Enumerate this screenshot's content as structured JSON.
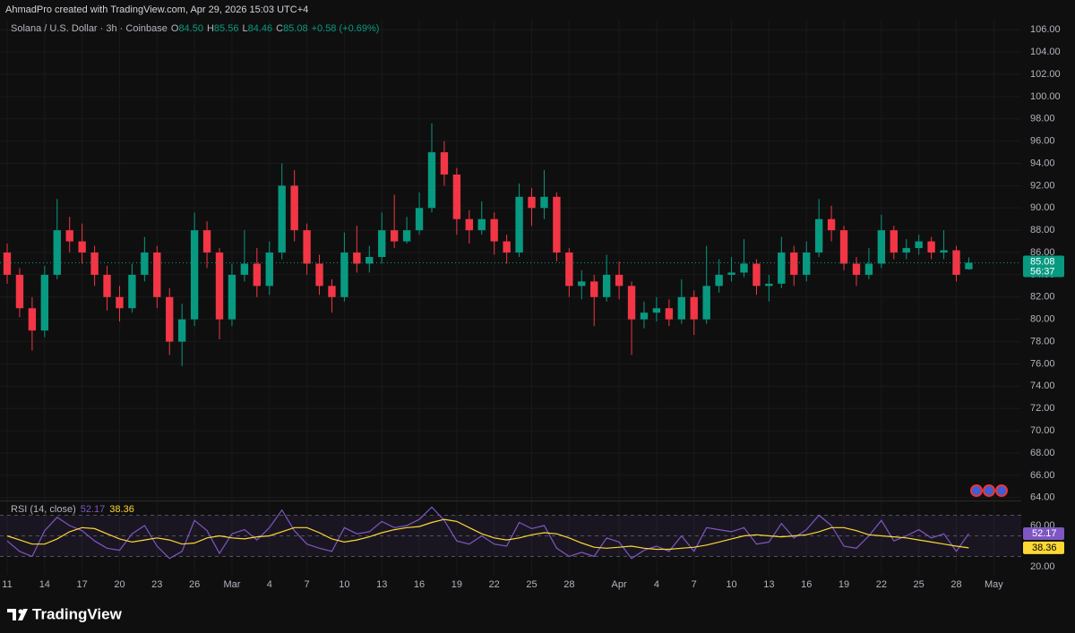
{
  "header": {
    "attribution": "AhmadPro created with TradingView.com, Apr 29, 2026 15:03 UTC+4"
  },
  "footer": {
    "brand": "TradingView"
  },
  "chart_data": [
    {
      "type": "candlestick",
      "title": "Solana / U.S. Dollar · 3h · Coinbase",
      "ohlc": [
        {
          "label": "O",
          "value": "84.50"
        },
        {
          "label": "H",
          "value": "85.56"
        },
        {
          "label": "L",
          "value": "84.46"
        },
        {
          "label": "C",
          "value": "85.08"
        }
      ],
      "change": "+0.58 (+0.69%)",
      "last_price_label": "85.08",
      "countdown": "56:37",
      "up_color": "#089981",
      "down_color": "#f23645",
      "x": [
        0,
        1,
        2,
        3,
        4,
        5,
        6,
        7,
        8,
        9,
        10,
        11,
        12,
        13,
        14,
        15,
        16,
        17,
        18,
        19,
        20,
        21,
        22,
        23,
        24,
        25,
        26,
        27,
        28,
        29,
        30,
        31,
        32,
        33,
        34,
        35,
        36,
        37,
        38,
        39,
        40,
        41,
        42,
        43,
        44,
        45,
        46,
        47,
        48,
        49,
        50,
        51,
        52,
        53,
        54,
        55,
        56,
        57,
        58,
        59,
        60,
        61,
        62,
        63,
        64,
        65,
        66,
        67,
        68,
        69,
        70,
        71,
        72,
        73,
        74,
        75,
        76,
        77
      ],
      "open": [
        86,
        84,
        81,
        79,
        84,
        88,
        87,
        86,
        84,
        82,
        81,
        84,
        86,
        82,
        78,
        80,
        88,
        86,
        80,
        84,
        85,
        83,
        86,
        92,
        88,
        85,
        83,
        82,
        86,
        85,
        85.6,
        88,
        87,
        88,
        90,
        95,
        93,
        89,
        88,
        89,
        87,
        86,
        91,
        90,
        91,
        86,
        83,
        83.4,
        82,
        84,
        83,
        80,
        80.6,
        81,
        80,
        82,
        80,
        83,
        84,
        84.2,
        85,
        83,
        83.2,
        86,
        84,
        86,
        89,
        88,
        85,
        84,
        85,
        88,
        86,
        86.4,
        87,
        86,
        86.2,
        84.5
      ],
      "high": [
        86.8,
        84.6,
        82,
        84.8,
        90.8,
        89.2,
        88.6,
        86.6,
        84.8,
        83,
        85,
        87.4,
        86.6,
        82.8,
        81.4,
        89.6,
        88.8,
        86.4,
        85,
        88,
        86.4,
        87,
        94,
        93.4,
        88.6,
        85.8,
        83.6,
        87.8,
        88.4,
        86.6,
        89.6,
        91.2,
        89.2,
        91.4,
        97.6,
        96,
        93.6,
        89.8,
        90.6,
        89.6,
        87.6,
        92.2,
        91.8,
        93.4,
        91.4,
        86.4,
        84.4,
        84,
        85.8,
        85.2,
        83.4,
        81.6,
        82,
        81.8,
        83.6,
        82.6,
        86.6,
        85.4,
        85.6,
        87.2,
        85.4,
        84,
        87.4,
        86.6,
        87,
        90.8,
        90.2,
        88.4,
        85.6,
        86.4,
        89.4,
        88.4,
        87.2,
        87.6,
        87.4,
        88,
        86.6,
        85.56
      ],
      "low": [
        83.2,
        80.2,
        77.2,
        78.4,
        83.6,
        86,
        85,
        83,
        80.8,
        79.8,
        80.6,
        83.4,
        81,
        76.8,
        75.8,
        79.4,
        84.6,
        78.2,
        79.4,
        83.4,
        82,
        82.2,
        85.4,
        87,
        84,
        82.2,
        80.6,
        81.6,
        84.2,
        84.2,
        85,
        86.4,
        86.8,
        87.6,
        89.6,
        92,
        87.6,
        86.8,
        87.6,
        85.8,
        85,
        85.6,
        88.4,
        89,
        85.2,
        82,
        81.8,
        79.4,
        81.6,
        81.8,
        76.8,
        79.2,
        79.8,
        79.4,
        79.6,
        78.6,
        79.6,
        82.4,
        83.4,
        83.8,
        82.2,
        81.6,
        82.8,
        83,
        83.4,
        85.6,
        87,
        84.4,
        83,
        83.6,
        84.6,
        85.4,
        85.4,
        85.8,
        85.4,
        85.4,
        83.4,
        84.46
      ],
      "close": [
        84,
        81,
        79,
        84,
        88,
        87,
        86,
        84,
        82,
        81,
        84,
        86,
        82,
        78,
        80,
        88,
        86,
        80,
        84,
        85,
        83,
        86,
        92,
        88,
        85,
        83,
        82,
        86,
        85,
        85.6,
        88,
        87,
        88,
        90,
        95,
        93,
        89,
        88,
        89,
        87,
        86,
        91,
        90,
        91,
        86,
        83,
        83.4,
        82,
        84,
        83,
        80,
        80.6,
        81,
        80,
        82,
        80,
        83,
        84,
        84.2,
        85,
        83,
        83.2,
        86,
        84,
        86,
        89,
        88,
        85,
        84,
        85,
        88,
        86,
        86.4,
        87,
        86,
        86.2,
        84,
        85.08
      ],
      "xlim": [
        -0.574,
        81.2
      ],
      "xticks": [
        {
          "value": 0,
          "label": "11"
        },
        {
          "value": 3,
          "label": "14"
        },
        {
          "value": 6,
          "label": "17"
        },
        {
          "value": 9,
          "label": "20"
        },
        {
          "value": 12,
          "label": "23"
        },
        {
          "value": 15,
          "label": "26"
        },
        {
          "value": 18,
          "label": "Mar"
        },
        {
          "value": 21,
          "label": "4"
        },
        {
          "value": 24,
          "label": "7"
        },
        {
          "value": 27,
          "label": "10"
        },
        {
          "value": 30,
          "label": "13"
        },
        {
          "value": 33,
          "label": "16"
        },
        {
          "value": 36,
          "label": "19"
        },
        {
          "value": 39,
          "label": "22"
        },
        {
          "value": 42,
          "label": "25"
        },
        {
          "value": 45,
          "label": "28"
        },
        {
          "value": 49,
          "label": "Apr"
        },
        {
          "value": 52,
          "label": "4"
        },
        {
          "value": 55,
          "label": "7"
        },
        {
          "value": 58,
          "label": "10"
        },
        {
          "value": 61,
          "label": "13"
        },
        {
          "value": 64,
          "label": "16"
        },
        {
          "value": 67,
          "label": "19"
        },
        {
          "value": 70,
          "label": "22"
        },
        {
          "value": 73,
          "label": "25"
        },
        {
          "value": 76,
          "label": "28"
        },
        {
          "value": 79,
          "label": "May"
        }
      ],
      "ylim": [
        63.9,
        106.9
      ],
      "yticks": [
        {
          "value": 64,
          "label": "64.00"
        },
        {
          "value": 66,
          "label": "66.00"
        },
        {
          "value": 68,
          "label": "68.00"
        },
        {
          "value": 70,
          "label": "70.00"
        },
        {
          "value": 72,
          "label": "72.00"
        },
        {
          "value": 74,
          "label": "74.00"
        },
        {
          "value": 76,
          "label": "76.00"
        },
        {
          "value": 78,
          "label": "78.00"
        },
        {
          "value": 80,
          "label": "80.00"
        },
        {
          "value": 82,
          "label": "82.00"
        },
        {
          "value": 84,
          "label": "84.00"
        },
        {
          "value": 86,
          "label": "86.00"
        },
        {
          "value": 88,
          "label": "88.00"
        },
        {
          "value": 90,
          "label": "90.00"
        },
        {
          "value": 92,
          "label": "92.00"
        },
        {
          "value": 94,
          "label": "94.00"
        },
        {
          "value": 96,
          "label": "96.00"
        },
        {
          "value": 98,
          "label": "98.00"
        },
        {
          "value": 100,
          "label": "100.00"
        },
        {
          "value": 102,
          "label": "102.00"
        },
        {
          "value": 104,
          "label": "104.00"
        },
        {
          "value": 106,
          "label": "106.00"
        }
      ],
      "grid": true
    },
    {
      "type": "line",
      "title": "RSI (14, close)",
      "series": [
        {
          "color": "#7e57c2",
          "last_label": "52.17",
          "values": [
            45,
            35,
            30,
            55,
            68,
            60,
            55,
            45,
            38,
            36,
            52,
            60,
            40,
            28,
            35,
            65,
            55,
            33,
            52,
            56,
            46,
            58,
            75,
            55,
            42,
            38,
            35,
            58,
            52,
            54,
            64,
            58,
            60,
            66,
            78,
            65,
            45,
            42,
            50,
            42,
            40,
            63,
            57,
            60,
            38,
            30,
            34,
            30,
            48,
            44,
            28,
            36,
            40,
            35,
            50,
            35,
            58,
            56,
            54,
            58,
            42,
            44,
            62,
            48,
            56,
            70,
            60,
            40,
            38,
            50,
            65,
            45,
            50,
            56,
            48,
            52,
            35,
            52.17
          ]
        },
        {
          "color": "#fdd835",
          "last_label": "38.36",
          "values": [
            50,
            46,
            42,
            42,
            47,
            54,
            58,
            57,
            52,
            47,
            44,
            46,
            48,
            46,
            42,
            43,
            48,
            50,
            48,
            47,
            49,
            50,
            54,
            58,
            58,
            53,
            47,
            44,
            46,
            49,
            53,
            56,
            58,
            59,
            63,
            66,
            64,
            58,
            52,
            48,
            46,
            48,
            51,
            53,
            52,
            48,
            43,
            39,
            38,
            39,
            40,
            38,
            37,
            37,
            38,
            39,
            41,
            44,
            47,
            50,
            51,
            50,
            49,
            50,
            51,
            54,
            58,
            58,
            55,
            51,
            50,
            49,
            48,
            46,
            44,
            42,
            40,
            38.36
          ]
        }
      ],
      "ylim": [
        12.2,
        81.7
      ],
      "yticks": [
        {
          "value": 20,
          "label": "20.00"
        },
        {
          "value": 60,
          "label": "60.00"
        }
      ],
      "bands": [
        30,
        50,
        70
      ]
    }
  ]
}
